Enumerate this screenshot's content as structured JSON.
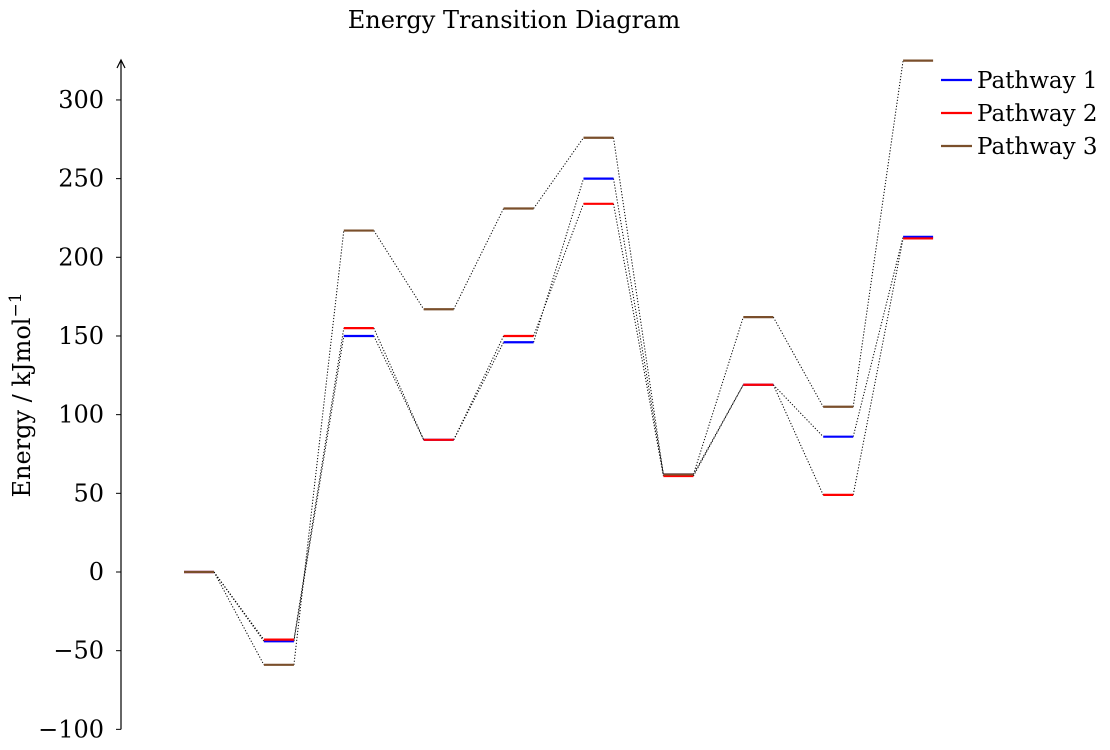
{
  "chart_data": {
    "type": "line",
    "title": "Energy Transition Diagram",
    "xlabel": "",
    "ylabel": "Energy / kJmol",
    "ylabel_superscript": "−1",
    "ylim": [
      -100,
      325
    ],
    "y_ticks": [
      -100,
      -50,
      0,
      50,
      100,
      150,
      200,
      250,
      300
    ],
    "y_tick_labels": [
      "−100",
      "−50",
      "0",
      "50",
      "100",
      "150",
      "200",
      "250",
      "300"
    ],
    "x": [
      0,
      1,
      2,
      3,
      4,
      5,
      6,
      7,
      8,
      9
    ],
    "grid": false,
    "legend_position": "top-right",
    "series": [
      {
        "name": "Pathway 1",
        "color": "#0000ff",
        "values": [
          0,
          -44,
          150,
          84,
          146,
          250,
          62,
          119,
          86,
          213
        ]
      },
      {
        "name": "Pathway 2",
        "color": "#ff0000",
        "values": [
          0,
          -43,
          155,
          84,
          150,
          234,
          61,
          119,
          49,
          212
        ]
      },
      {
        "name": "Pathway 3",
        "color": "#7a4f2b",
        "values": [
          0,
          -59,
          217,
          167,
          231,
          276,
          62,
          162,
          105,
          325
        ]
      }
    ]
  }
}
